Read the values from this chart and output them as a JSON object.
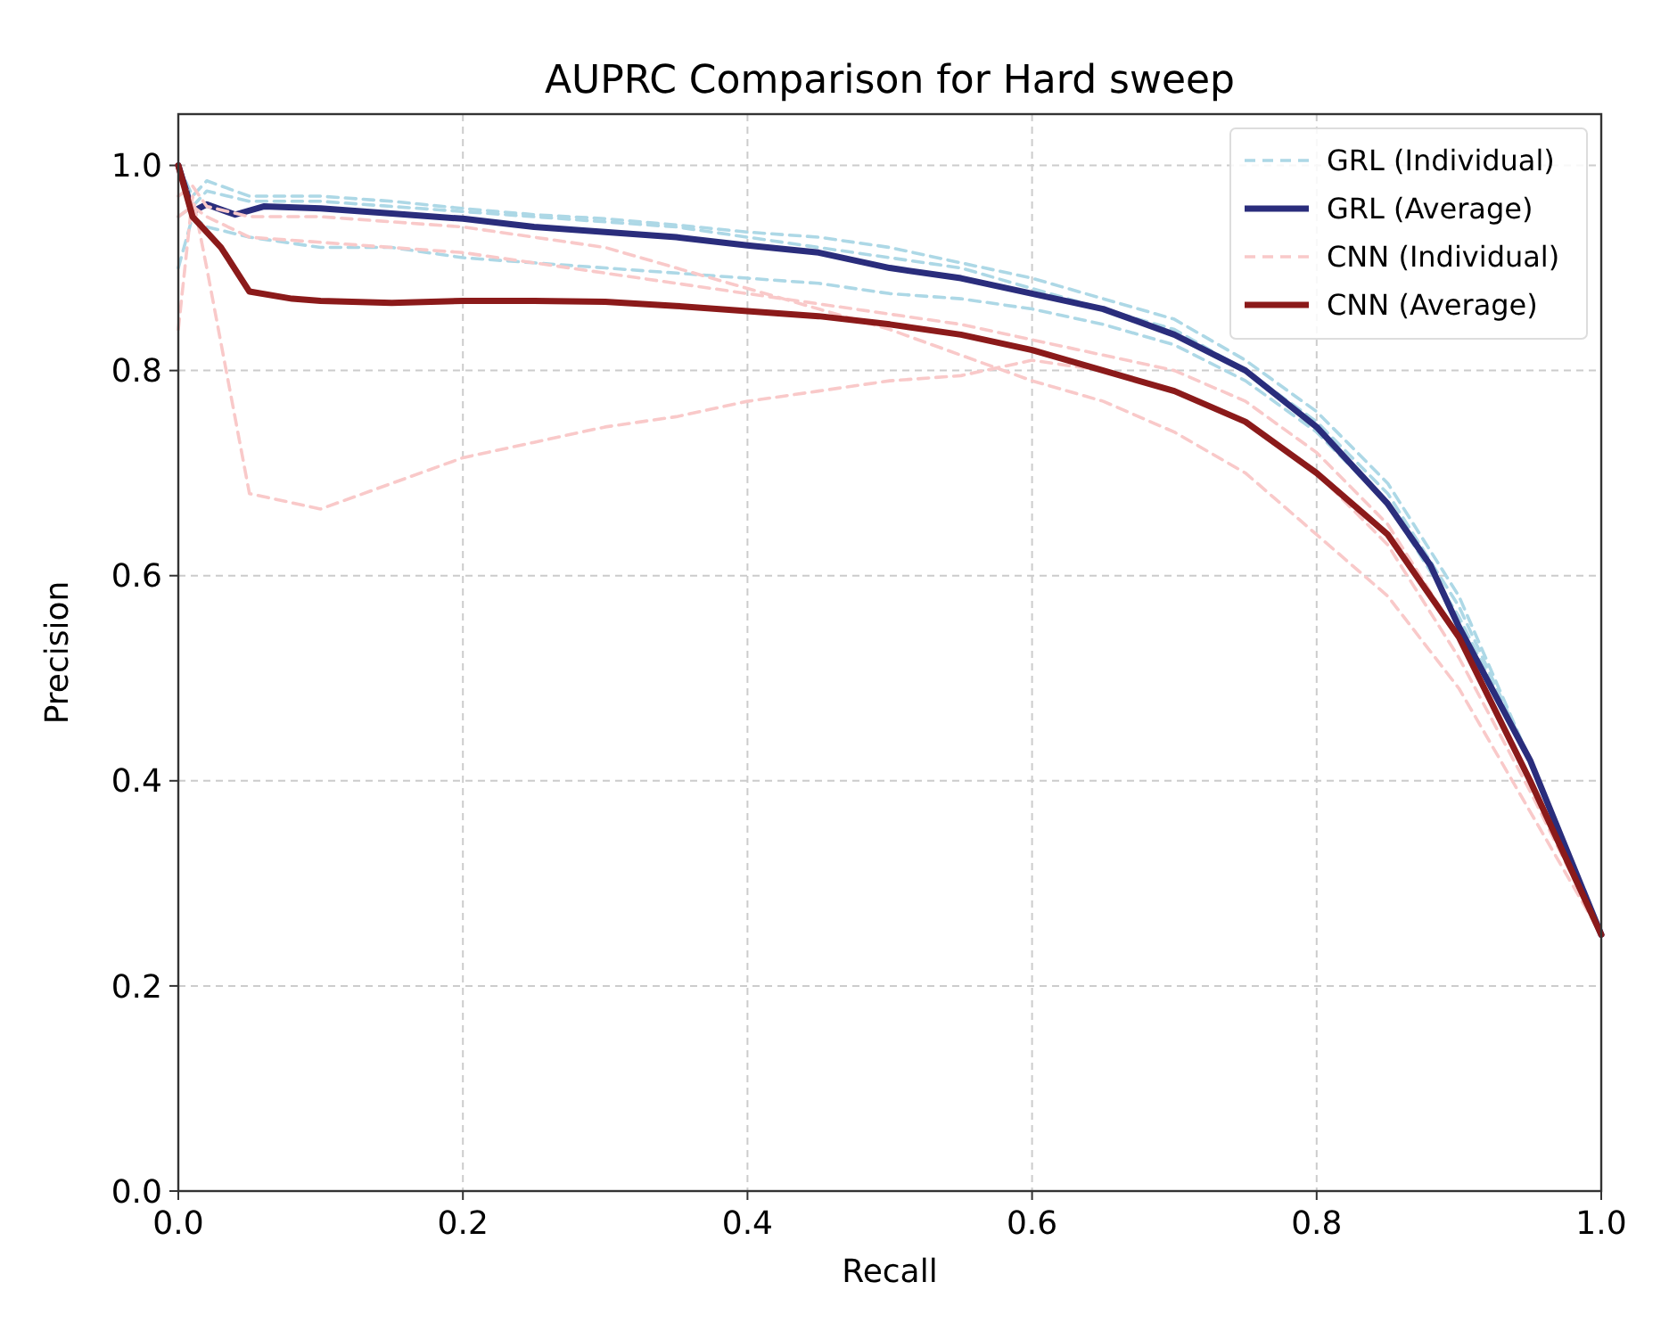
{
  "chart_data": {
    "type": "line",
    "title": "AUPRC Comparison for Hard sweep",
    "xlabel": "Recall",
    "ylabel": "Precision",
    "x": [
      0,
      0.01,
      0.02,
      0.05,
      0.1,
      0.15,
      0.2,
      0.25,
      0.3,
      0.35,
      0.4,
      0.45,
      0.5,
      0.55,
      0.6,
      0.65,
      0.7,
      0.75,
      0.8,
      0.85,
      0.9,
      0.95,
      1.0
    ],
    "xlim": [
      0,
      1
    ],
    "ylim": [
      0,
      1.05
    ],
    "xticks": [
      {
        "value": 0,
        "label": "0.0"
      },
      0.2,
      0.4,
      0.6,
      0.8,
      {
        "value": 1,
        "label": "1.0"
      }
    ],
    "yticks": [
      {
        "value": 0,
        "label": "0.0"
      },
      0.2,
      0.4,
      0.6,
      0.8,
      {
        "value": 1,
        "label": "1.0"
      }
    ],
    "grid": true,
    "legend": "top right",
    "series": [
      {
        "name": "GRL (Individual)",
        "color": "#add8e6",
        "line_style": "dashed",
        "values": [
          1.0,
          0.97,
          0.985,
          0.97,
          0.97,
          0.965,
          0.958,
          0.952,
          0.948,
          0.942,
          0.935,
          0.93,
          0.92,
          0.905,
          0.89,
          0.87,
          0.85,
          0.81,
          0.76,
          0.69,
          0.58,
          0.42,
          0.25
        ]
      },
      {
        "color": "#add8e6",
        "line_style": "dashed",
        "values": [
          0.95,
          0.96,
          0.975,
          0.965,
          0.965,
          0.96,
          0.955,
          0.95,
          0.945,
          0.94,
          0.93,
          0.92,
          0.91,
          0.9,
          0.88,
          0.86,
          0.84,
          0.8,
          0.75,
          0.68,
          0.57,
          0.42,
          0.25
        ]
      },
      {
        "color": "#add8e6",
        "line_style": "dashed",
        "values": [
          0.9,
          0.95,
          0.94,
          0.93,
          0.92,
          0.92,
          0.91,
          0.905,
          0.9,
          0.895,
          0.89,
          0.885,
          0.875,
          0.87,
          0.86,
          0.845,
          0.825,
          0.79,
          0.74,
          0.67,
          0.56,
          0.42,
          0.25
        ]
      },
      {
        "name": "GRL (Average)",
        "color": "#2a2d7c",
        "line_style": "solid",
        "x": [
          0,
          0.01,
          0.02,
          0.04,
          0.06,
          0.1,
          0.15,
          0.2,
          0.25,
          0.3,
          0.35,
          0.4,
          0.45,
          0.5,
          0.55,
          0.6,
          0.65,
          0.7,
          0.75,
          0.8,
          0.85,
          0.88,
          0.9,
          0.95,
          1.0
        ],
        "values": [
          1.0,
          0.955,
          0.962,
          0.952,
          0.96,
          0.958,
          0.953,
          0.948,
          0.94,
          0.935,
          0.93,
          0.922,
          0.915,
          0.9,
          0.89,
          0.875,
          0.86,
          0.835,
          0.8,
          0.745,
          0.67,
          0.61,
          0.55,
          0.42,
          0.25
        ]
      },
      {
        "name": "CNN (Individual)",
        "color": "#f9c9c9",
        "line_style": "dashed",
        "values": [
          0.84,
          0.97,
          0.9,
          0.68,
          0.665,
          0.69,
          0.715,
          0.73,
          0.745,
          0.755,
          0.77,
          0.78,
          0.79,
          0.795,
          0.81,
          0.8,
          0.78,
          0.75,
          0.7,
          0.63,
          0.52,
          0.39,
          0.25
        ]
      },
      {
        "color": "#f9c9c9",
        "line_style": "dashed",
        "values": [
          0.95,
          0.96,
          0.95,
          0.93,
          0.925,
          0.92,
          0.915,
          0.905,
          0.895,
          0.885,
          0.875,
          0.865,
          0.855,
          0.845,
          0.83,
          0.815,
          0.8,
          0.77,
          0.72,
          0.65,
          0.54,
          0.4,
          0.25
        ]
      },
      {
        "color": "#f9c9c9",
        "line_style": "dashed",
        "values": [
          0.97,
          0.98,
          0.96,
          0.95,
          0.95,
          0.945,
          0.94,
          0.93,
          0.92,
          0.9,
          0.88,
          0.86,
          0.84,
          0.815,
          0.79,
          0.77,
          0.74,
          0.7,
          0.64,
          0.58,
          0.49,
          0.37,
          0.25
        ]
      },
      {
        "name": "CNN (Average)",
        "color": "#8b1a1a",
        "line_style": "solid",
        "x": [
          0,
          0.01,
          0.03,
          0.05,
          0.08,
          0.1,
          0.15,
          0.2,
          0.25,
          0.3,
          0.35,
          0.4,
          0.45,
          0.5,
          0.55,
          0.6,
          0.65,
          0.7,
          0.75,
          0.8,
          0.85,
          0.9,
          0.95,
          1.0
        ],
        "values": [
          1.0,
          0.95,
          0.92,
          0.877,
          0.87,
          0.868,
          0.866,
          0.868,
          0.868,
          0.867,
          0.863,
          0.858,
          0.853,
          0.845,
          0.835,
          0.82,
          0.8,
          0.78,
          0.75,
          0.7,
          0.64,
          0.54,
          0.4,
          0.25
        ]
      }
    ]
  }
}
